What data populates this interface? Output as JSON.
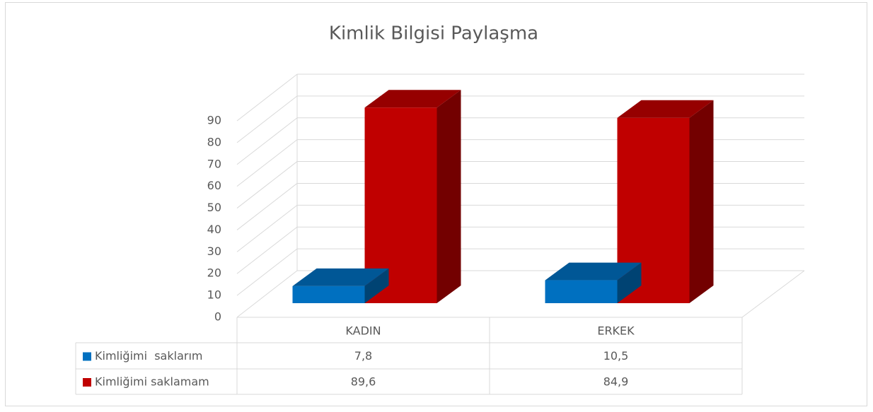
{
  "chart_data": {
    "type": "bar3d",
    "title": "Kimlik Bilgisi Paylaşma",
    "categories": [
      "KADIN",
      "ERKEK"
    ],
    "series": [
      {
        "name": "Kimliğimi  saklarım",
        "color": "#0070c0",
        "values": [
          7.8,
          10.5
        ],
        "value_labels": [
          "7,8",
          "10,5"
        ]
      },
      {
        "name": "Kimliğimi saklamam",
        "color": "#c00000",
        "values": [
          89.6,
          84.9
        ],
        "value_labels": [
          "89,6",
          "84,9"
        ]
      }
    ],
    "ylim": [
      0,
      90
    ],
    "yticks": [
      0,
      10,
      20,
      30,
      40,
      50,
      60,
      70,
      80,
      90
    ],
    "grid": true,
    "legend": "table"
  }
}
